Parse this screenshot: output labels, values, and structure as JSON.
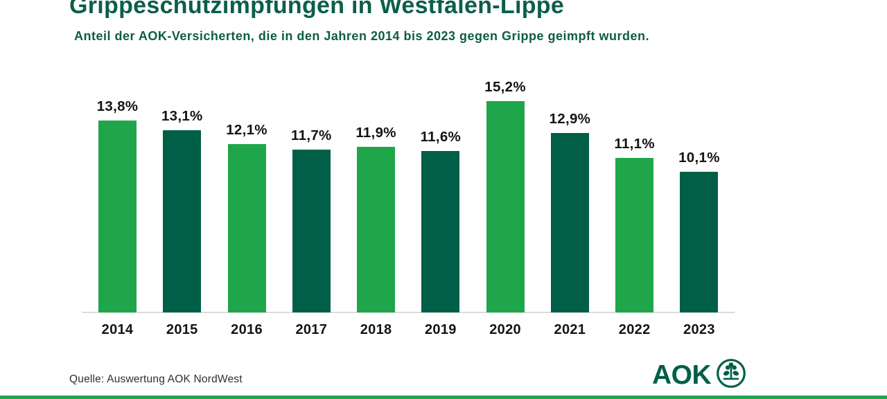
{
  "header": {
    "title": "Grippeschutzimpfungen in Westfalen-Lippe",
    "subtitle": "Anteil der AOK-Versicherten, die in den Jahren 2014 bis 2023 gegen Grippe geimpft wurden."
  },
  "chart_data": {
    "type": "bar",
    "title": "Grippeschutzimpfungen in Westfalen-Lippe",
    "categories": [
      "2014",
      "2015",
      "2016",
      "2017",
      "2018",
      "2019",
      "2020",
      "2021",
      "2022",
      "2023"
    ],
    "values": [
      13.8,
      13.1,
      12.1,
      11.7,
      11.9,
      11.6,
      15.2,
      12.9,
      11.1,
      10.1
    ],
    "value_labels": [
      "13,8%",
      "13,1%",
      "12,1%",
      "11,7%",
      "11,9%",
      "11,6%",
      "15,2%",
      "12,9%",
      "11,1%",
      "10,1%"
    ],
    "unit": "%",
    "ylim": [
      0,
      17.5
    ],
    "grid": false,
    "legend": false,
    "bar_colors_alternating": [
      "#1fa64a",
      "#005f46"
    ],
    "axis_line_color": "#d9ddda",
    "label_color": "#141414"
  },
  "footer": {
    "source": "Quelle: Auswertung AOK NordWest",
    "logo_text": "AOK",
    "logo_icon": "aok-tree-icon",
    "logo_color": "#005f46"
  },
  "accent_strip_color": "#1fa64a"
}
